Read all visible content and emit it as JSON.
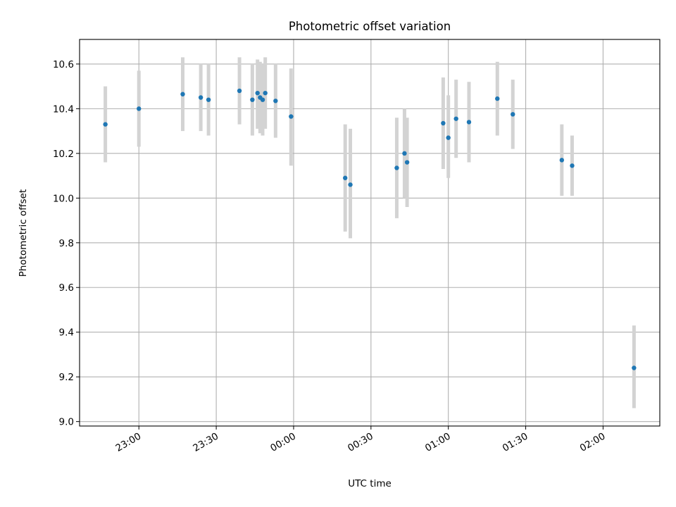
{
  "chart_data": {
    "type": "scatter",
    "title": "Photometric offset variation",
    "xlabel": "UTC time",
    "ylabel": "Photometric offset",
    "x_axis": "time",
    "xlim": [
      "22:37",
      "02:22"
    ],
    "ylim": [
      8.98,
      10.71
    ],
    "x_ticks": [
      "23:00",
      "23:30",
      "00:00",
      "00:30",
      "01:00",
      "01:30",
      "02:00"
    ],
    "y_ticks": [
      "9.0",
      "9.2",
      "9.4",
      "9.6",
      "9.8",
      "10.0",
      "10.2",
      "10.4",
      "10.6"
    ],
    "grid": true,
    "colors": {
      "points": "#1f77b4",
      "error_bars": "#d3d3d3"
    },
    "points": [
      {
        "x": "22:47",
        "y": 10.33,
        "y_low": 10.16,
        "y_high": 10.5
      },
      {
        "x": "23:00",
        "y": 10.4,
        "y_low": 10.23,
        "y_high": 10.57
      },
      {
        "x": "23:17",
        "y": 10.465,
        "y_low": 10.3,
        "y_high": 10.63
      },
      {
        "x": "23:24",
        "y": 10.45,
        "y_low": 10.3,
        "y_high": 10.6
      },
      {
        "x": "23:27",
        "y": 10.44,
        "y_low": 10.28,
        "y_high": 10.6
      },
      {
        "x": "23:39",
        "y": 10.48,
        "y_low": 10.33,
        "y_high": 10.63
      },
      {
        "x": "23:44",
        "y": 10.44,
        "y_low": 10.28,
        "y_high": 10.6
      },
      {
        "x": "23:46",
        "y": 10.47,
        "y_low": 10.31,
        "y_high": 10.62
      },
      {
        "x": "23:47",
        "y": 10.45,
        "y_low": 10.29,
        "y_high": 10.61
      },
      {
        "x": "23:48",
        "y": 10.44,
        "y_low": 10.28,
        "y_high": 10.6
      },
      {
        "x": "23:49",
        "y": 10.47,
        "y_low": 10.31,
        "y_high": 10.63
      },
      {
        "x": "23:53",
        "y": 10.435,
        "y_low": 10.27,
        "y_high": 10.6
      },
      {
        "x": "23:59",
        "y": 10.365,
        "y_low": 10.145,
        "y_high": 10.58
      },
      {
        "x": "00:20",
        "y": 10.09,
        "y_low": 9.85,
        "y_high": 10.33
      },
      {
        "x": "00:22",
        "y": 10.06,
        "y_low": 9.82,
        "y_high": 10.31
      },
      {
        "x": "00:40",
        "y": 10.135,
        "y_low": 9.91,
        "y_high": 10.36
      },
      {
        "x": "00:43",
        "y": 10.2,
        "y_low": 10.0,
        "y_high": 10.4
      },
      {
        "x": "00:44",
        "y": 10.16,
        "y_low": 9.96,
        "y_high": 10.36
      },
      {
        "x": "00:58",
        "y": 10.335,
        "y_low": 10.13,
        "y_high": 10.54
      },
      {
        "x": "01:00",
        "y": 10.27,
        "y_low": 10.09,
        "y_high": 10.46
      },
      {
        "x": "01:03",
        "y": 10.355,
        "y_low": 10.18,
        "y_high": 10.53
      },
      {
        "x": "01:08",
        "y": 10.34,
        "y_low": 10.16,
        "y_high": 10.52
      },
      {
        "x": "01:19",
        "y": 10.445,
        "y_low": 10.28,
        "y_high": 10.61
      },
      {
        "x": "01:25",
        "y": 10.375,
        "y_low": 10.22,
        "y_high": 10.53
      },
      {
        "x": "01:44",
        "y": 10.17,
        "y_low": 10.01,
        "y_high": 10.33
      },
      {
        "x": "01:48",
        "y": 10.145,
        "y_low": 10.01,
        "y_high": 10.28
      },
      {
        "x": "02:12",
        "y": 9.24,
        "y_low": 9.06,
        "y_high": 9.43
      }
    ]
  }
}
